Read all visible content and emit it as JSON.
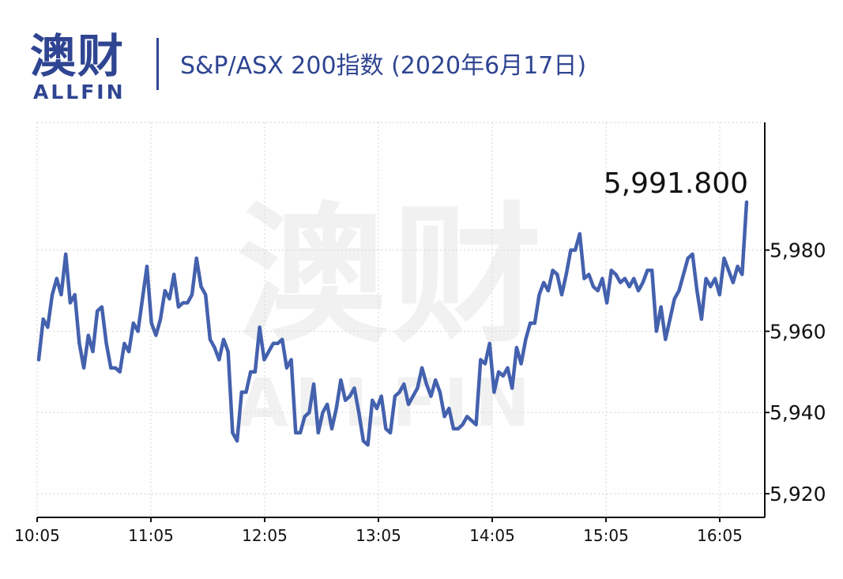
{
  "brand": {
    "name_cn": "澳财",
    "name_en": "ALLFIN",
    "color": "#2f4592",
    "accent": "#d6335a"
  },
  "watermark": {
    "cn": "澳财",
    "en": "ALLFIN"
  },
  "chart_data": {
    "type": "line",
    "title": "S&P/ASX 200指数 (2020年6月17日)",
    "xlabel": "",
    "ylabel": "",
    "x_ticks": [
      "10:05",
      "11:05",
      "12:05",
      "13:05",
      "14:05",
      "15:05",
      "16:05"
    ],
    "y_ticks": [
      "5,920",
      "5,940",
      "5,960",
      "5,980"
    ],
    "y_tick_values": [
      5920,
      5940,
      5960,
      5980
    ],
    "ylim": [
      5913,
      6006
    ],
    "last_value_label": "5,991.800",
    "line_color": "#4461ae",
    "grid": true,
    "series": [
      {
        "values": [
          5953,
          5963,
          5961,
          5969,
          5973,
          5969,
          5979,
          5967,
          5969,
          5957,
          5951,
          5959,
          5955,
          5965,
          5966,
          5957,
          5951,
          5951,
          5950,
          5957,
          5955,
          5962,
          5960,
          5968,
          5976,
          5962,
          5959,
          5963,
          5970,
          5968,
          5974,
          5966,
          5967,
          5967,
          5969,
          5978,
          5971,
          5969,
          5958,
          5956,
          5953,
          5958,
          5955,
          5935,
          5933,
          5945,
          5945,
          5950,
          5950,
          5961,
          5953,
          5955,
          5957,
          5957,
          5958,
          5951,
          5953,
          5935,
          5935,
          5939,
          5940,
          5947,
          5935,
          5940,
          5942,
          5936,
          5941,
          5948,
          5943,
          5944,
          5946,
          5940,
          5933,
          5932,
          5943,
          5941,
          5944,
          5936,
          5935,
          5944,
          5945,
          5947,
          5942,
          5944,
          5946,
          5951,
          5947,
          5944,
          5948,
          5945,
          5939,
          5941,
          5936,
          5936,
          5937,
          5939,
          5938,
          5937,
          5953,
          5952,
          5957,
          5945,
          5950,
          5949,
          5951,
          5946,
          5956,
          5952,
          5958,
          5962,
          5962,
          5969,
          5972,
          5970,
          5975,
          5974,
          5969,
          5974,
          5980,
          5980,
          5984,
          5973,
          5974,
          5971,
          5970,
          5973,
          5967,
          5975,
          5974,
          5972,
          5973,
          5971,
          5973,
          5970,
          5972,
          5975,
          5975,
          5960,
          5966,
          5958,
          5963,
          5968,
          5970,
          5974,
          5978,
          5979,
          5970,
          5963,
          5973,
          5971,
          5973,
          5969,
          5978,
          5975,
          5972,
          5976,
          5974,
          5991.8
        ]
      }
    ]
  }
}
